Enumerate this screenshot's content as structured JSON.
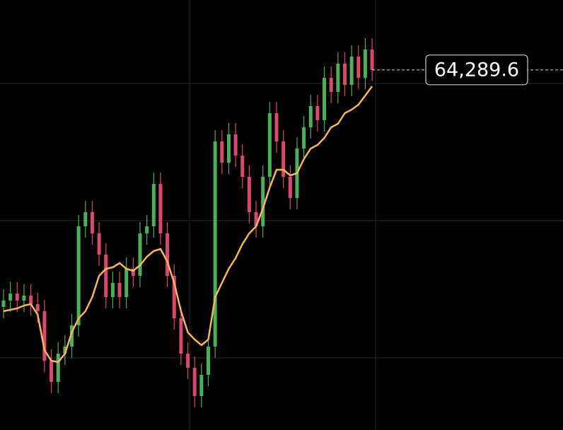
{
  "chart_data": {
    "type": "candlestick",
    "open": [
      60100,
      60212.5,
      60337.5,
      60212.5,
      60300,
      60150,
      60025,
      59150,
      58775,
      59275,
      59400,
      59775,
      61525,
      61775,
      61400,
      61025,
      60275,
      60525,
      60275,
      60775,
      60650,
      61400,
      61525,
      62275,
      61400,
      60650,
      59900,
      59275,
      59025,
      58525,
      58900,
      59400,
      63025,
      62650,
      63150,
      62775,
      62400,
      61775,
      61525,
      62400,
      63525,
      63025,
      62400,
      62025,
      62900,
      63275,
      63650,
      63400,
      64150,
      63900,
      64400,
      64025,
      64525,
      64150,
      64650
    ],
    "high": [
      60412.5,
      60537.5,
      60537.5,
      60500,
      60500,
      60350,
      60225,
      59350,
      59475,
      59600,
      59975,
      61725,
      61975,
      61975,
      61600,
      61225,
      60725,
      60725,
      60975,
      60975,
      61600,
      61725,
      62475,
      62475,
      61600,
      60850,
      60100,
      59475,
      59225,
      59100,
      59600,
      63225,
      63225,
      63350,
      63350,
      62975,
      62600,
      61975,
      62600,
      63725,
      63725,
      63225,
      62600,
      63100,
      63475,
      63850,
      63850,
      64350,
      64350,
      64600,
      64600,
      64725,
      64725,
      64850,
      64850
    ],
    "low": [
      59900,
      60012.5,
      60012.5,
      60012.5,
      59950,
      59825,
      58950,
      58575,
      58575,
      59075,
      59200,
      59575,
      61325,
      61200,
      60825,
      60075,
      60075,
      60075,
      60075,
      60450,
      60450,
      61200,
      61325,
      61200,
      60450,
      59700,
      59075,
      58825,
      58325,
      58325,
      58700,
      59200,
      62450,
      62450,
      62575,
      62200,
      61575,
      61325,
      61325,
      62200,
      62825,
      62200,
      61825,
      61825,
      62700,
      63075,
      63200,
      63200,
      63700,
      63700,
      63825,
      63825,
      63950,
      63950,
      64089.6
    ],
    "close": [
      60212.5,
      60337.5,
      60212.5,
      60300,
      60150,
      60025,
      59150,
      58775,
      59275,
      59400,
      59775,
      61525,
      61775,
      61400,
      61025,
      60275,
      60525,
      60275,
      60775,
      60650,
      61400,
      61525,
      62275,
      61400,
      60650,
      59900,
      59275,
      59025,
      58525,
      58900,
      59400,
      63025,
      62650,
      63150,
      62775,
      62400,
      61775,
      61525,
      62400,
      63525,
      63025,
      62400,
      62025,
      62900,
      63275,
      63650,
      63400,
      64150,
      63900,
      64400,
      64025,
      64525,
      64150,
      64650,
      64289.6
    ],
    "ma": [
      60025,
      60050,
      60075,
      60125,
      60150,
      59962.5,
      59337.5,
      59150,
      59125,
      59275,
      59650,
      59900,
      60025,
      60275,
      60650,
      60775,
      60800,
      60875,
      60775,
      60737.5,
      60837.5,
      60987.5,
      61087.5,
      61125,
      60900,
      60525,
      60025,
      59650,
      59525,
      59425,
      59525,
      60275,
      60525,
      60775,
      60962.5,
      61212.5,
      61400,
      61525,
      61837.5,
      62212.5,
      62525,
      62525,
      62425,
      62462.5,
      62712.5,
      62900,
      62962.5,
      63087.5,
      63275,
      63337.5,
      63525,
      63587.5,
      63675,
      63837.5,
      64000
    ],
    "up_color": "#4caf5a",
    "down_color": "#d9496b",
    "ma_color": "#f7b55c",
    "ylim": [
      57925,
      65525
    ],
    "yticks": [
      59200,
      61625,
      64050
    ],
    "grid": true,
    "last_price": {
      "value": 64289.6,
      "label": "64,289.6"
    }
  }
}
